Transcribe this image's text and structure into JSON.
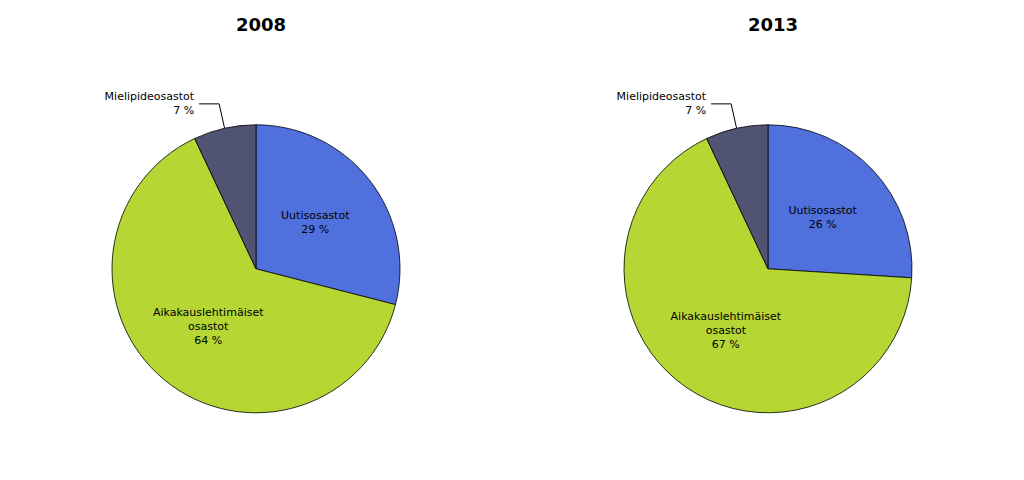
{
  "chart_data": [
    {
      "type": "pie",
      "title": "2008",
      "categories": [
        "Uutisosastot",
        "Aikakauslehtimäiset\nosastot",
        "Mielipideosastot"
      ],
      "values": [
        29,
        64,
        7
      ],
      "value_labels": [
        "29 %",
        "64 %",
        "7 %"
      ]
    },
    {
      "type": "pie",
      "title": "2013",
      "categories": [
        "Uutisosastot",
        "Aikakauslehtimäiset\nosastot",
        "Mielipideosastot"
      ],
      "values": [
        26,
        67,
        7
      ],
      "value_labels": [
        "26 %",
        "67 %",
        "7 %"
      ]
    }
  ]
}
